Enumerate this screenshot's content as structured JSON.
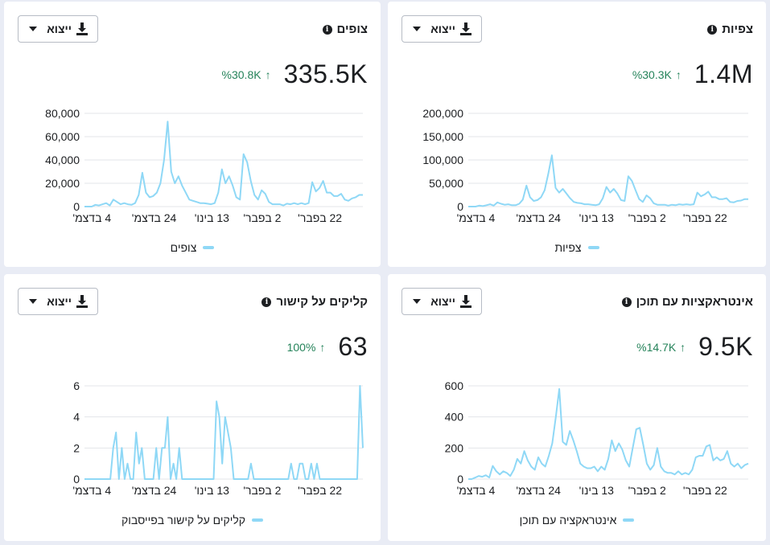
{
  "cards": [
    {
      "title": "צופים",
      "export_label": "ייצוא",
      "value": "335.5K",
      "change": "%30.8K",
      "legend": "צופים",
      "series_color": "#8fd8f6",
      "chart_data": {
        "type": "line",
        "ylim": [
          0,
          80000
        ],
        "yticks": [
          "80,000",
          "60,000",
          "40,000",
          "20,000",
          "0"
        ],
        "xticks": [
          "4 בדצמ'",
          "24 בדצמ'",
          "13 בינו'",
          "2 בפבר'",
          "22 בפבר'"
        ],
        "series": [
          {
            "name": "צופים",
            "values": [
              0,
              0,
              0,
              1500,
              1000,
              2000,
              3000,
              1000,
              6000,
              4000,
              2000,
              3000,
              2000,
              1500,
              3000,
              10000,
              29000,
              12000,
              8000,
              9000,
              12000,
              20000,
              40000,
              73000,
              30000,
              20000,
              26000,
              18000,
              12000,
              6000,
              5000,
              4000,
              3000,
              3000,
              2500,
              2000,
              3000,
              12000,
              32000,
              20000,
              26000,
              18000,
              8000,
              6000,
              45000,
              38000,
              22000,
              10000,
              6000,
              14000,
              11000,
              4000,
              2000,
              2000,
              2000,
              1000,
              2500,
              2000,
              3000,
              2000,
              3000,
              2000,
              3000,
              21000,
              13000,
              16000,
              22000,
              12000,
              12000,
              9000,
              9000,
              11000,
              6000,
              5000,
              7000,
              8000,
              10000,
              10000
            ]
          }
        ]
      }
    },
    {
      "title": "צפיות",
      "export_label": "ייצוא",
      "value": "1.4M",
      "change": "%30.3K",
      "legend": "צפיות",
      "series_color": "#8fd8f6",
      "chart_data": {
        "type": "line",
        "ylim": [
          0,
          200000
        ],
        "yticks": [
          "200,000",
          "150,000",
          "100,000",
          "50,000",
          "0"
        ],
        "xticks": [
          "4 בדצמ'",
          "24 בדצמ'",
          "13 בינו'",
          "2 בפבר'",
          "22 בפבר'"
        ],
        "series": [
          {
            "name": "צפיות",
            "values": [
              0,
              0,
              0,
              2000,
              1000,
              3000,
              5000,
              2000,
              9000,
              6000,
              4000,
              5000,
              3000,
              3000,
              6000,
              15000,
              45000,
              20000,
              12000,
              14000,
              20000,
              35000,
              70000,
              110000,
              40000,
              30000,
              38000,
              28000,
              18000,
              10000,
              8000,
              7000,
              5000,
              5000,
              4000,
              3000,
              5000,
              18000,
              42000,
              30000,
              38000,
              28000,
              14000,
              12000,
              65000,
              55000,
              35000,
              16000,
              10000,
              24000,
              18000,
              7000,
              4000,
              4000,
              4000,
              2000,
              4000,
              3000,
              5000,
              4000,
              5000,
              4000,
              5000,
              30000,
              22000,
              26000,
              32000,
              20000,
              20000,
              16000,
              16000,
              18000,
              10000,
              9000,
              12000,
              13000,
              16000,
              16000
            ]
          }
        ]
      }
    },
    {
      "title": "קליקים על קישור",
      "export_label": "ייצוא",
      "value": "63",
      "change": "100%",
      "legend": "קליקים על קישור בפייסבוק",
      "series_color": "#8fd8f6",
      "chart_data": {
        "type": "line",
        "ylim": [
          0,
          6
        ],
        "yticks": [
          "6",
          "4",
          "2",
          "0"
        ],
        "xticks": [
          "4 בדצמ'",
          "24 בדצמ'",
          "13 בינו'",
          "2 בפבר'",
          "22 בפבר'"
        ],
        "series": [
          {
            "name": "קליקים על קישור בפייסבוק",
            "values": [
              0,
              0,
              0,
              0,
              0,
              0,
              0,
              0,
              0,
              0,
              2,
              3,
              0,
              2,
              0,
              1,
              0,
              0,
              3,
              1,
              2,
              0,
              0,
              0,
              0,
              2,
              0,
              2,
              2,
              4,
              0,
              1,
              0,
              2,
              0,
              0,
              0,
              0,
              0,
              0,
              0,
              0,
              0,
              0,
              0,
              0,
              5,
              4,
              1,
              4,
              3,
              2,
              0,
              0,
              0,
              0,
              0,
              0,
              1,
              0,
              0,
              0,
              0,
              0,
              0,
              0,
              0,
              0,
              0,
              0,
              0,
              0,
              1,
              0,
              0,
              1,
              1,
              0,
              0,
              1,
              0,
              1,
              0,
              0,
              0,
              0,
              0,
              0,
              0,
              0,
              0,
              0,
              0,
              0,
              0,
              0,
              6,
              2
            ]
          }
        ]
      }
    },
    {
      "title": "אינטראקציות עם תוכן",
      "export_label": "ייצוא",
      "value": "9.5K",
      "change": "%14.7K",
      "legend": "אינטראקציה עם תוכן",
      "series_color": "#8fd8f6",
      "chart_data": {
        "type": "line",
        "ylim": [
          0,
          600
        ],
        "yticks": [
          "600",
          "400",
          "200",
          "0"
        ],
        "xticks": [
          "4 בדצמ'",
          "24 בדצמ'",
          "13 בינו'",
          "2 בפבר'",
          "22 בפבר'"
        ],
        "series": [
          {
            "name": "אינטראקציה עם תוכן",
            "values": [
              0,
              0,
              10,
              20,
              15,
              25,
              10,
              85,
              50,
              30,
              50,
              40,
              20,
              60,
              130,
              100,
              180,
              120,
              80,
              60,
              140,
              100,
              80,
              150,
              230,
              400,
              580,
              240,
              220,
              310,
              250,
              180,
              100,
              80,
              70,
              70,
              80,
              50,
              80,
              60,
              130,
              250,
              180,
              230,
              190,
              120,
              80,
              200,
              320,
              330,
              220,
              100,
              60,
              90,
              200,
              80,
              50,
              40,
              40,
              30,
              50,
              30,
              40,
              30,
              60,
              140,
              150,
              150,
              210,
              220,
              120,
              140,
              120,
              130,
              180,
              100,
              80,
              100,
              70,
              90,
              100
            ]
          }
        ]
      }
    }
  ]
}
